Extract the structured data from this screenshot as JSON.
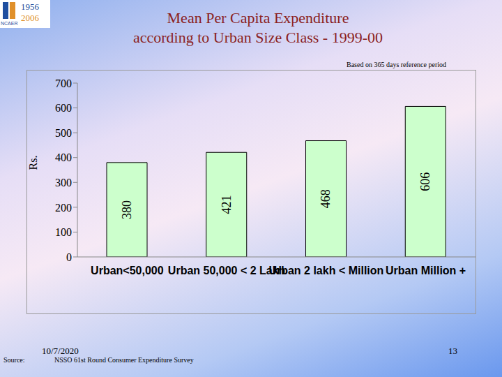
{
  "chart_data": {
    "type": "bar",
    "title": "Mean Per Capita Expenditure",
    "subtitle": "according to Urban Size Class - 1999-00",
    "annotation": "Based on 365 days reference period",
    "y_label": "Rs.",
    "categories": [
      "Urban<50,000",
      "Urban 50,000 < 2 Lakh",
      "Urban 2 lakh < Million",
      "Urban Million +"
    ],
    "values": [
      380,
      421,
      468,
      606
    ],
    "color": "#ccffcc",
    "ylim": [
      0,
      700
    ],
    "yticks": [
      0,
      100,
      200,
      300,
      400,
      500,
      600,
      700
    ],
    "grid": false,
    "data_labels": true
  },
  "footer": {
    "source_label": "Source:",
    "date": "10/7/2020",
    "source": "NSSO 61st Round Consumer Expenditure Survey",
    "page": "13"
  },
  "logo": {
    "years": [
      "1956",
      "2006"
    ],
    "name": "NCAER"
  }
}
